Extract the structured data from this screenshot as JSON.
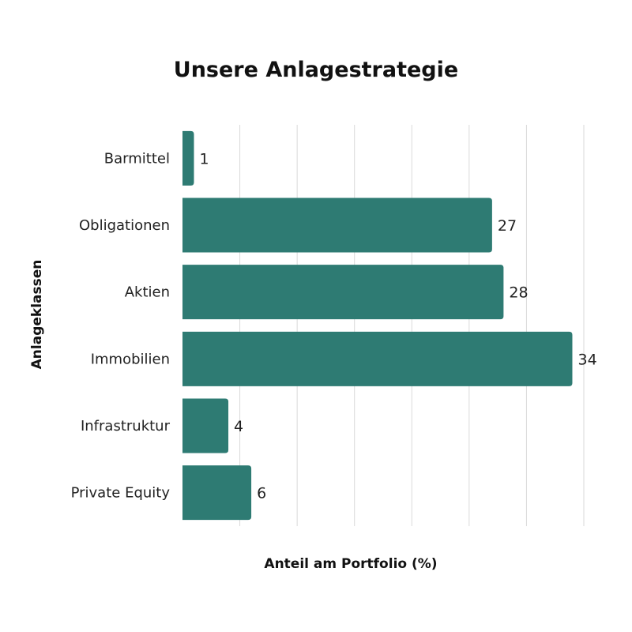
{
  "chart_data": {
    "type": "bar",
    "orientation": "horizontal",
    "title": "Unsere Anlagestrategie",
    "xlabel": "Anteil am Portfolio (%)",
    "ylabel": "Anlageklassen",
    "categories": [
      "Barmittel",
      "Obligationen",
      "Aktien",
      "Immobilien",
      "Infrastruktur",
      "Private Equity"
    ],
    "values": [
      1,
      27,
      28,
      34,
      4,
      6
    ],
    "xlim": [
      0,
      35
    ],
    "grid": true,
    "bar_color": "#2e7b73"
  }
}
